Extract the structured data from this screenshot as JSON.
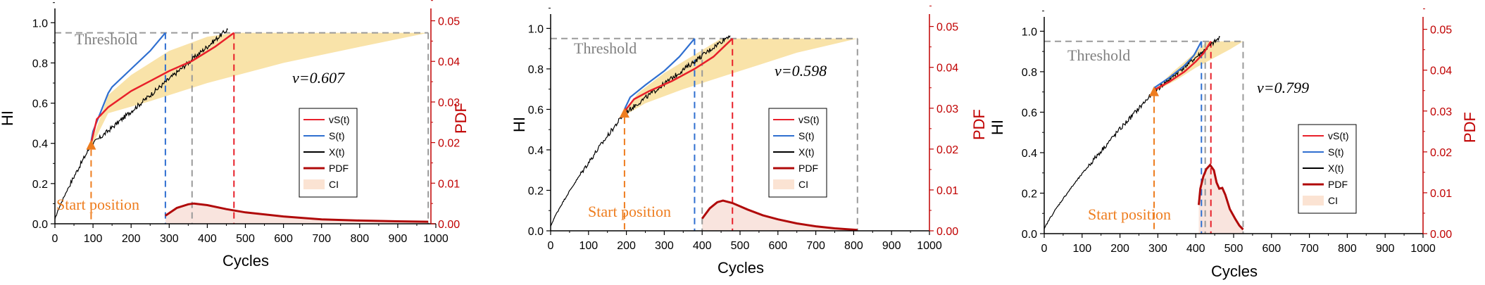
{
  "colors": {
    "vs": "#e8202a",
    "s": "#2f6fd0",
    "x": "#000000",
    "pdf": "#b00a0a",
    "ci": "#f7d98c",
    "start": "#ee7d1f",
    "threshold_line": "#9a9a9a",
    "right_axis": "#c00000"
  },
  "common": {
    "xlabel": "Cycles",
    "ylabel_left": "HI",
    "ylabel_right": "PDF",
    "threshold_label": "Threshold",
    "start_label": "Start position",
    "legend": [
      "vS(t)",
      "S(t)",
      "X(t)",
      "PDF",
      "CI"
    ],
    "xticks": [
      "0",
      "100",
      "200",
      "300",
      "400",
      "500",
      "600",
      "700",
      "800",
      "900",
      "1000"
    ],
    "yticks_left": [
      "0.0",
      "0.2",
      "0.4",
      "0.6",
      "0.8",
      "1.0"
    ],
    "yticks_right": [
      "0.00",
      "0.01",
      "0.02",
      "0.03",
      "0.04",
      "0.05"
    ]
  },
  "chart_data": [
    {
      "type": "line",
      "xlim": [
        0,
        1000
      ],
      "ylim_left": [
        0,
        1.05
      ],
      "ylim_right": [
        0,
        0.052
      ],
      "threshold": 0.95,
      "v_label": "v=0.607",
      "start_cycle": 95,
      "start_hi": 0.39,
      "vs_end": 470,
      "s_end": 290,
      "mid_end": 360,
      "ci_end": 980,
      "x_series_end": 455,
      "s_series": [
        [
          95,
          0.41
        ],
        [
          100,
          0.46
        ],
        [
          140,
          0.65
        ],
        [
          150,
          0.68
        ],
        [
          200,
          0.77
        ],
        [
          250,
          0.86
        ],
        [
          290,
          0.95
        ]
      ],
      "vs_series": [
        [
          95,
          0.4
        ],
        [
          110,
          0.52
        ],
        [
          140,
          0.58
        ],
        [
          200,
          0.66
        ],
        [
          260,
          0.72
        ],
        [
          300,
          0.76
        ],
        [
          360,
          0.81
        ],
        [
          420,
          0.88
        ],
        [
          470,
          0.95
        ]
      ],
      "ci_upper": [
        [
          95,
          0.4
        ],
        [
          140,
          0.64
        ],
        [
          200,
          0.74
        ],
        [
          300,
          0.86
        ],
        [
          400,
          0.93
        ],
        [
          470,
          0.95
        ],
        [
          980,
          0.95
        ]
      ],
      "ci_lower": [
        [
          95,
          0.38
        ],
        [
          140,
          0.55
        ],
        [
          250,
          0.61
        ],
        [
          400,
          0.7
        ],
        [
          600,
          0.8
        ],
        [
          800,
          0.88
        ],
        [
          980,
          0.95
        ]
      ],
      "pdf_series": [
        [
          290,
          0.002
        ],
        [
          320,
          0.0039
        ],
        [
          350,
          0.0048
        ],
        [
          365,
          0.005
        ],
        [
          400,
          0.0046
        ],
        [
          450,
          0.0036
        ],
        [
          500,
          0.0028
        ],
        [
          600,
          0.0018
        ],
        [
          700,
          0.0011
        ],
        [
          800,
          0.0008
        ],
        [
          900,
          0.0006
        ],
        [
          980,
          0.0005
        ]
      ]
    },
    {
      "type": "line",
      "xlim": [
        0,
        1000
      ],
      "ylim_left": [
        0,
        1.05
      ],
      "ylim_right": [
        0,
        0.052
      ],
      "threshold": 0.95,
      "v_label": "v=0.598",
      "start_cycle": 195,
      "start_hi": 0.58,
      "vs_end": 480,
      "s_end": 380,
      "mid_end": 400,
      "ci_end": 810,
      "x_series_end": 475,
      "s_series": [
        [
          195,
          0.6
        ],
        [
          210,
          0.66
        ],
        [
          250,
          0.72
        ],
        [
          300,
          0.79
        ],
        [
          340,
          0.86
        ],
        [
          380,
          0.95
        ]
      ],
      "vs_series": [
        [
          195,
          0.59
        ],
        [
          220,
          0.65
        ],
        [
          260,
          0.69
        ],
        [
          320,
          0.74
        ],
        [
          380,
          0.8
        ],
        [
          430,
          0.86
        ],
        [
          480,
          0.95
        ]
      ],
      "ci_upper": [
        [
          195,
          0.59
        ],
        [
          230,
          0.68
        ],
        [
          300,
          0.78
        ],
        [
          380,
          0.87
        ],
        [
          450,
          0.95
        ],
        [
          810,
          0.95
        ]
      ],
      "ci_lower": [
        [
          195,
          0.57
        ],
        [
          250,
          0.63
        ],
        [
          350,
          0.7
        ],
        [
          450,
          0.76
        ],
        [
          550,
          0.82
        ],
        [
          650,
          0.88
        ],
        [
          810,
          0.95
        ]
      ],
      "pdf_series": [
        [
          400,
          0.003
        ],
        [
          420,
          0.0055
        ],
        [
          440,
          0.007
        ],
        [
          455,
          0.0074
        ],
        [
          480,
          0.0068
        ],
        [
          520,
          0.0052
        ],
        [
          560,
          0.0038
        ],
        [
          600,
          0.0028
        ],
        [
          650,
          0.0018
        ],
        [
          700,
          0.0011
        ],
        [
          750,
          0.0006
        ],
        [
          810,
          0.0002
        ]
      ]
    },
    {
      "type": "line",
      "xlim": [
        0,
        1000
      ],
      "ylim_left": [
        0,
        1.05
      ],
      "ylim_right": [
        0,
        0.052
      ],
      "threshold": 0.95,
      "v_label": "v=0.799",
      "start_cycle": 290,
      "start_hi": 0.7,
      "vs_end": 440,
      "s_end": 415,
      "mid_end": 425,
      "ci_end": 525,
      "x_series_end": 465,
      "s_series": [
        [
          290,
          0.72
        ],
        [
          330,
          0.77
        ],
        [
          370,
          0.83
        ],
        [
          395,
          0.88
        ],
        [
          415,
          0.95
        ]
      ],
      "vs_series": [
        [
          290,
          0.71
        ],
        [
          330,
          0.75
        ],
        [
          370,
          0.8
        ],
        [
          400,
          0.85
        ],
        [
          420,
          0.89
        ],
        [
          440,
          0.95
        ]
      ],
      "ci_upper": [
        [
          290,
          0.71
        ],
        [
          340,
          0.8
        ],
        [
          390,
          0.88
        ],
        [
          430,
          0.95
        ],
        [
          525,
          0.95
        ]
      ],
      "ci_lower": [
        [
          290,
          0.7
        ],
        [
          350,
          0.76
        ],
        [
          400,
          0.82
        ],
        [
          450,
          0.87
        ],
        [
          490,
          0.91
        ],
        [
          525,
          0.95
        ]
      ],
      "pdf_series": [
        [
          408,
          0.007
        ],
        [
          412,
          0.011
        ],
        [
          420,
          0.014
        ],
        [
          428,
          0.0158
        ],
        [
          438,
          0.0168
        ],
        [
          448,
          0.0155
        ],
        [
          455,
          0.0125
        ],
        [
          462,
          0.011
        ],
        [
          470,
          0.0112
        ],
        [
          478,
          0.0095
        ],
        [
          490,
          0.006
        ],
        [
          505,
          0.0035
        ],
        [
          515,
          0.002
        ],
        [
          525,
          0.001
        ]
      ]
    }
  ]
}
